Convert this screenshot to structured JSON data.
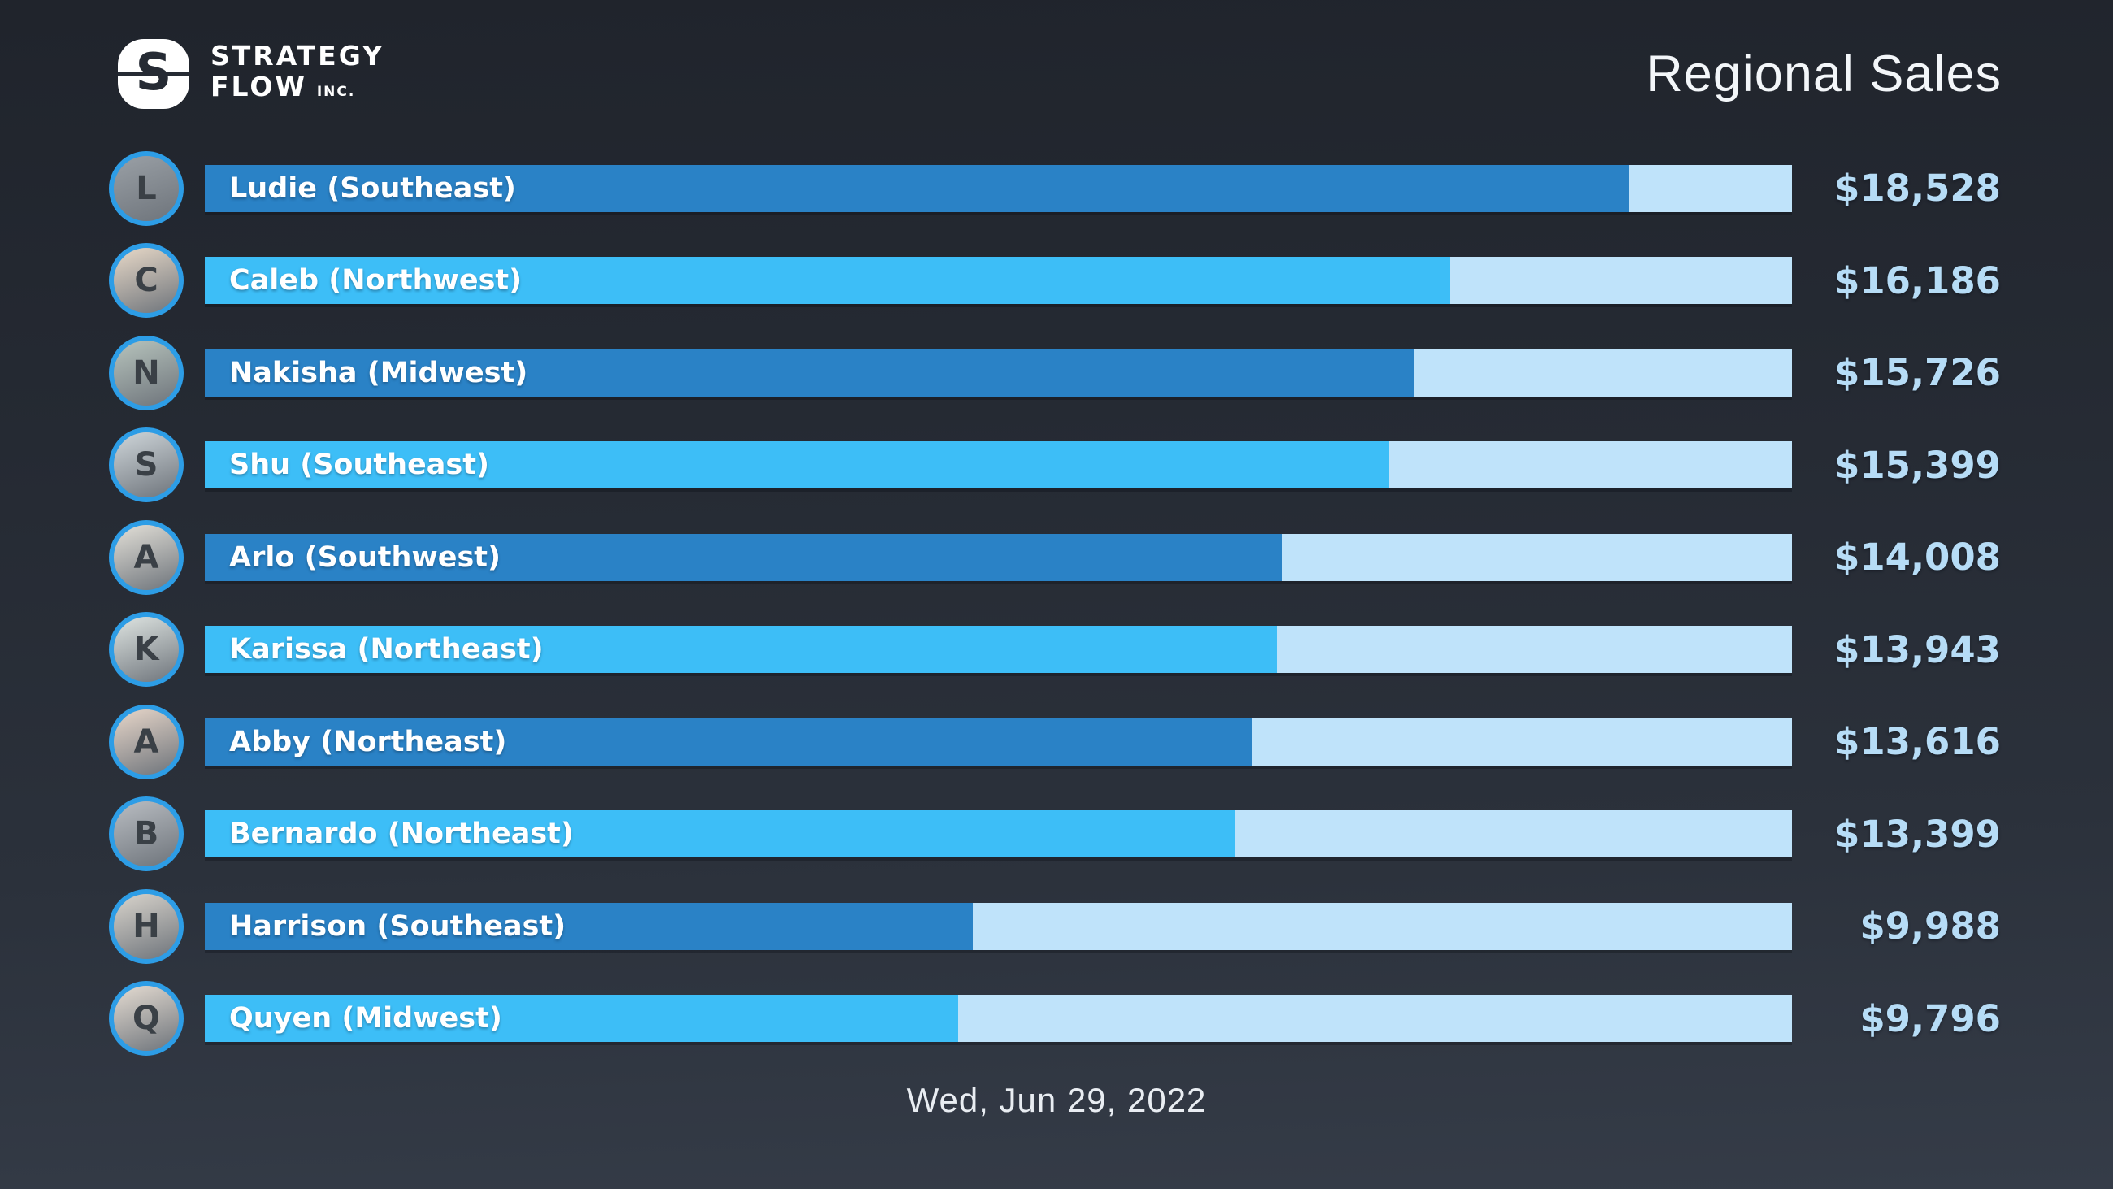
{
  "header": {
    "logo": {
      "monogram": "S",
      "line1": "STRATEGY",
      "line2": "FLOW",
      "suffix": "INC."
    },
    "title": "Regional Sales"
  },
  "footer": {
    "date": "Wed, Jun 29, 2022"
  },
  "colors": {
    "background_top": "#20242c",
    "background_bottom": "#353c48",
    "bar_fill_dark": "#2a82c6",
    "bar_fill_bright": "#3dbef7",
    "bar_track_remainder": "#bfe3fa",
    "value_text": "#b6dcf6",
    "avatar_ring": "#2d9de6",
    "title_text": "#f3f6f9"
  },
  "chart_data": {
    "type": "bar",
    "orientation": "horizontal",
    "title": "Regional Sales",
    "date_label": "Wed, Jun 29, 2022",
    "value_prefix": "$",
    "scale_max": 20640,
    "track_color": "#bfe3fa",
    "alt_fill_colors": [
      "#2a82c6",
      "#3dbef7"
    ],
    "rows": [
      {
        "name": "Ludie",
        "region": "Southeast",
        "label": "Ludie (Southeast)",
        "value": 18528,
        "value_label": "$18,528",
        "fill_color": "#2a82c6",
        "avatar_tone": "#9aa0a6"
      },
      {
        "name": "Caleb",
        "region": "Northwest",
        "label": "Caleb (Northwest)",
        "value": 16186,
        "value_label": "$16,186",
        "fill_color": "#3dbef7",
        "avatar_tone": "#e8d9c8"
      },
      {
        "name": "Nakisha",
        "region": "Midwest",
        "label": "Nakisha (Midwest)",
        "value": 15726,
        "value_label": "$15,726",
        "fill_color": "#2a82c6",
        "avatar_tone": "#b7c4bd"
      },
      {
        "name": "Shu",
        "region": "Southeast",
        "label": "Shu (Southeast)",
        "value": 15399,
        "value_label": "$15,399",
        "fill_color": "#3dbef7",
        "avatar_tone": "#cfd6da"
      },
      {
        "name": "Arlo",
        "region": "Southwest",
        "label": "Arlo (Southwest)",
        "value": 14008,
        "value_label": "$14,008",
        "fill_color": "#2a82c6",
        "avatar_tone": "#e3e0d8"
      },
      {
        "name": "Karissa",
        "region": "Northeast",
        "label": "Karissa (Northeast)",
        "value": 13943,
        "value_label": "$13,943",
        "fill_color": "#3dbef7",
        "avatar_tone": "#dfe5e2"
      },
      {
        "name": "Abby",
        "region": "Northeast",
        "label": "Abby (Northeast)",
        "value": 13616,
        "value_label": "$13,616",
        "fill_color": "#2a82c6",
        "avatar_tone": "#e7d6c9"
      },
      {
        "name": "Bernardo",
        "region": "Northeast",
        "label": "Bernardo (Northeast)",
        "value": 13399,
        "value_label": "$13,399",
        "fill_color": "#3dbef7",
        "avatar_tone": "#b9bdc2"
      },
      {
        "name": "Harrison",
        "region": "Southeast",
        "label": "Harrison (Southeast)",
        "value": 9988,
        "value_label": "$9,988",
        "fill_color": "#2a82c6",
        "avatar_tone": "#d9d4cc"
      },
      {
        "name": "Quyen",
        "region": "Midwest",
        "label": "Quyen (Midwest)",
        "value": 9796,
        "value_label": "$9,796",
        "fill_color": "#3dbef7",
        "avatar_tone": "#e5dcd2"
      }
    ]
  }
}
